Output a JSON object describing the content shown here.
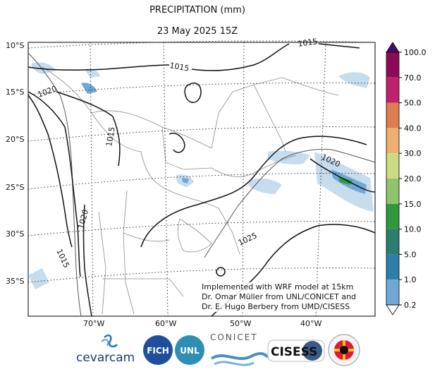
{
  "title": "PRECIPITATION (mm)",
  "subtitle": "23 May 2025 15Z",
  "lat_labels": [
    "10°S",
    "15°S",
    "20°S",
    "25°S",
    "30°S",
    "35°S"
  ],
  "lon_labels": [
    "70°W",
    "60°W",
    "50°W",
    "40°W"
  ],
  "contour_labels": [
    "1015",
    "1015",
    "1020",
    "1015",
    "1020",
    "1015",
    "1020",
    "1025"
  ],
  "colorbar": {
    "levels": [
      "100.0",
      "70.0",
      "50.0",
      "40.0",
      "30.0",
      "20.0",
      "15.0",
      "10.0",
      "5.0",
      "1.0",
      "0.2"
    ],
    "colors": [
      "#8e0a59",
      "#c2206e",
      "#e07c50",
      "#eeb06f",
      "#c9dd80",
      "#8fc46e",
      "#2e9a3c",
      "#2a7d6f",
      "#2b7fa9",
      "#6fa8d6",
      "#c6dcef",
      "#ffffff"
    ]
  },
  "note": [
    "Implemented with WRF model at 15km",
    "Dr. Omar Müller from UNL/CONICET and",
    "Dr. E. Hugo Berbery from UMD/CISESS"
  ],
  "logos": {
    "cevarcam": "cevarcam",
    "fich": "FICH",
    "unl": "UNL",
    "conicet": "CONICET",
    "cisess": "CISESS"
  }
}
